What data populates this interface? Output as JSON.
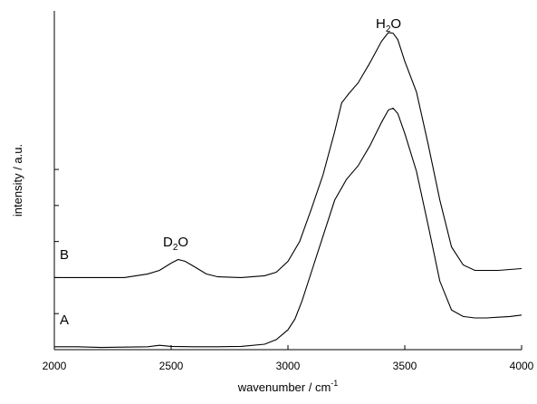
{
  "chart_data": {
    "type": "line",
    "title": "",
    "xlabel": "wavenumber / cm",
    "xlabel_sup": "-1",
    "ylabel": "intensity / a.u.",
    "xlim": [
      2000,
      4000
    ],
    "ylim": [
      0,
      9.4
    ],
    "x_ticks": [
      2000,
      2500,
      3000,
      3500,
      4000
    ],
    "y_ticks": [
      0,
      1,
      2,
      3,
      4,
      5
    ],
    "y_tick_labels_shown": false,
    "grid": false,
    "series": [
      {
        "name": "A",
        "x": [
          2000,
          2100,
          2200,
          2300,
          2400,
          2450,
          2500,
          2600,
          2700,
          2800,
          2900,
          2950,
          3000,
          3030,
          3060,
          3100,
          3150,
          3200,
          3250,
          3300,
          3350,
          3400,
          3430,
          3450,
          3470,
          3500,
          3550,
          3600,
          3650,
          3700,
          3750,
          3800,
          3850,
          3900,
          3950,
          4000
        ],
        "y": [
          0.08,
          0.08,
          0.06,
          0.07,
          0.08,
          0.12,
          0.09,
          0.08,
          0.08,
          0.09,
          0.15,
          0.28,
          0.55,
          0.85,
          1.35,
          2.15,
          3.15,
          4.15,
          4.72,
          5.1,
          5.65,
          6.3,
          6.65,
          6.7,
          6.55,
          6.0,
          4.95,
          3.45,
          1.9,
          1.1,
          0.92,
          0.88,
          0.88,
          0.9,
          0.92,
          0.96
        ]
      },
      {
        "name": "B",
        "x": [
          2000,
          2100,
          2200,
          2300,
          2400,
          2450,
          2500,
          2530,
          2560,
          2600,
          2650,
          2700,
          2800,
          2900,
          2950,
          3000,
          3050,
          3100,
          3150,
          3200,
          3230,
          3260,
          3300,
          3350,
          3400,
          3430,
          3450,
          3470,
          3500,
          3550,
          3600,
          3650,
          3700,
          3750,
          3800,
          3850,
          3900,
          4000
        ],
        "y": [
          2.0,
          2.0,
          2.0,
          2.0,
          2.1,
          2.2,
          2.4,
          2.5,
          2.45,
          2.3,
          2.1,
          2.02,
          2.0,
          2.05,
          2.15,
          2.45,
          3.0,
          3.9,
          4.85,
          6.05,
          6.85,
          7.1,
          7.4,
          7.95,
          8.55,
          8.8,
          8.78,
          8.6,
          8.0,
          7.15,
          5.7,
          4.15,
          2.85,
          2.35,
          2.2,
          2.2,
          2.2,
          2.25
        ]
      }
    ],
    "annotations": {
      "label_a": "A",
      "label_b": "B",
      "peak_d2o_main": "D",
      "peak_d2o_sub": "2",
      "peak_d2o_tail": "O",
      "peak_h2o_main": "H",
      "peak_h2o_sub": "2",
      "peak_h2o_tail": "O"
    }
  }
}
